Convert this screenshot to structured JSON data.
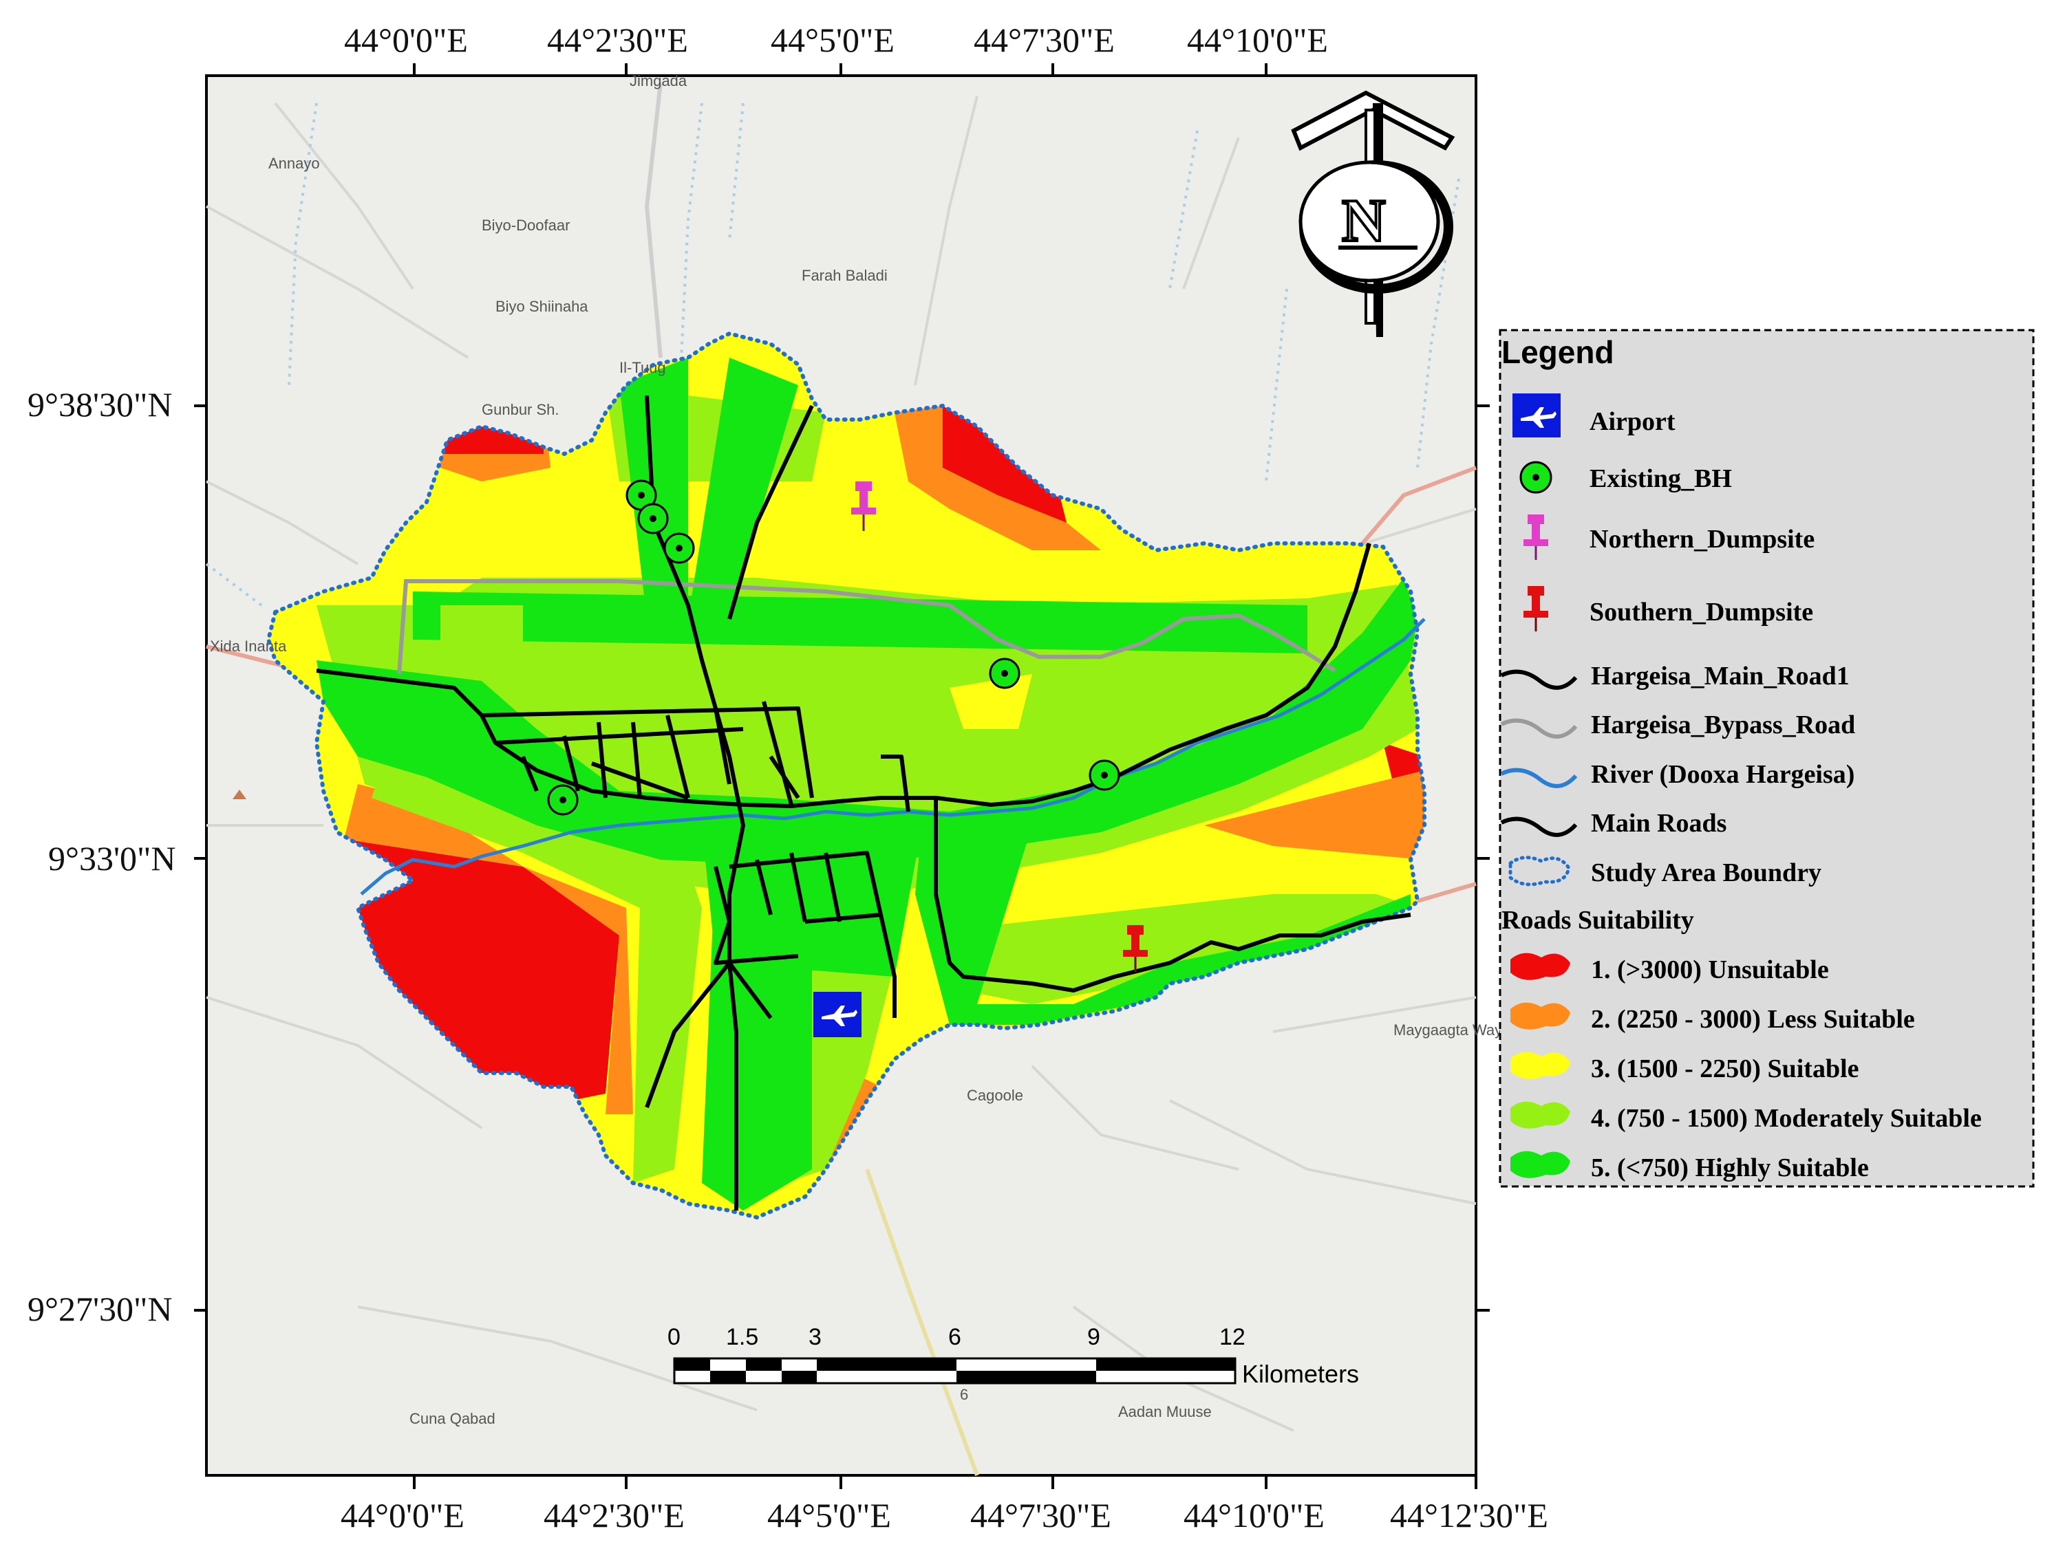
{
  "axes": {
    "top_ticks": [
      "44°0'0\"E",
      "44°2'30\"E",
      "44°5'0\"E",
      "44°7'30\"E",
      "44°10'0\"E"
    ],
    "bottom_ticks": [
      "44°0'0\"E",
      "44°2'30\"E",
      "44°5'0\"E",
      "44°7'30\"E",
      "44°10'0\"E",
      "44°12'30\"E"
    ],
    "left_ticks": [
      "9°38'30\"N",
      "9°33'0\"N",
      "9°27'30\"N"
    ]
  },
  "places": [
    "Jimgada",
    "Annayo",
    "Biyo-Doofaar",
    "Farah Baladi",
    "Biyo Shiinaha",
    "Il-Tuug",
    "Gunbur Sh.",
    "Xida Inanta",
    "Cagoole",
    "Maygaagta Wayn",
    "Cuna Qabad",
    "Aadan Muuse",
    "6"
  ],
  "compass": {
    "label": "N"
  },
  "scale_bar": {
    "ticks": [
      "0",
      "1.5",
      "3",
      "6",
      "9",
      "12"
    ],
    "unit": "Kilometers"
  },
  "legend": {
    "title": "Legend",
    "items": [
      {
        "label": "Airport",
        "symbol": "airport-icon"
      },
      {
        "label": "Existing_BH",
        "symbol": "borehole-icon"
      },
      {
        "label": "Northern_Dumpsite",
        "symbol": "pushpin-icon",
        "color": "#e040c8"
      },
      {
        "label": "Southern_Dumpsite",
        "symbol": "pushpin-icon",
        "color": "#e01010"
      },
      {
        "label": "Hargeisa_Main_Road1",
        "symbol": "line",
        "color": "#000000"
      },
      {
        "label": "Hargeisa_Bypass_Road",
        "symbol": "line",
        "color": "#9a9a9a"
      },
      {
        "label": "River (Dooxa Hargeisa)",
        "symbol": "line",
        "color": "#2a7fd4"
      },
      {
        "label": "Main Roads",
        "symbol": "line",
        "color": "#000000"
      },
      {
        "label": "Study Area Boundry",
        "symbol": "dotted-boundary",
        "color": "#1f6fd0"
      }
    ],
    "subtitle": "Roads Suitability",
    "classes": [
      {
        "label": "1. (>3000) Unsuitable",
        "color": "#f00a0a"
      },
      {
        "label": "2. (2250 - 3000)  Less Suitable",
        "color": "#ff8c1a"
      },
      {
        "label": "3. (1500 - 2250) Suitable",
        "color": "#ffff14"
      },
      {
        "label": "4. (750 - 1500) Moderately Suitable",
        "color": "#96f014"
      },
      {
        "label": "5. (<750) Highly Suitable",
        "color": "#14e614"
      }
    ]
  }
}
